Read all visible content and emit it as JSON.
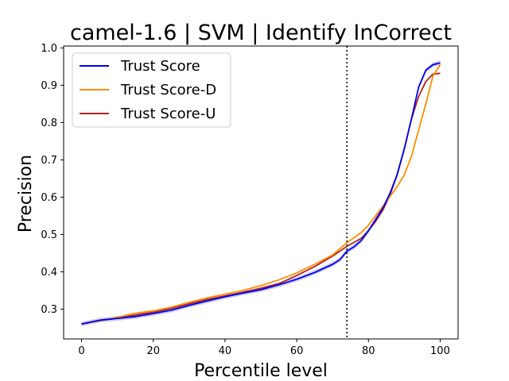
{
  "chart_data": {
    "type": "line",
    "title": "camel-1.6 | SVM | Identify InCorrect",
    "xlabel": "Percentile level",
    "ylabel": "Precision",
    "xlim": [
      -5,
      105
    ],
    "ylim": [
      0.22,
      1.005
    ],
    "xticks": [
      "0",
      "20",
      "40",
      "60",
      "80",
      "100"
    ],
    "yticks": [
      "0.3",
      "0.4",
      "0.5",
      "0.6",
      "0.7",
      "0.8",
      "0.9",
      "1.0"
    ],
    "grid": false,
    "legend_position": "top-left",
    "vline": {
      "x": 74,
      "style": "dotted",
      "color": "#000000"
    },
    "series": [
      {
        "name": "Trust Score",
        "color": "#0000ee",
        "band_color": "#b8b8f5",
        "x": [
          0,
          5,
          10,
          15,
          20,
          25,
          30,
          35,
          40,
          45,
          50,
          55,
          60,
          65,
          70,
          72,
          74,
          76,
          78,
          80,
          82,
          84,
          86,
          88,
          90,
          92,
          94,
          96,
          98,
          100
        ],
        "y": [
          0.26,
          0.27,
          0.275,
          0.28,
          0.288,
          0.297,
          0.31,
          0.322,
          0.333,
          0.343,
          0.352,
          0.365,
          0.38,
          0.398,
          0.42,
          0.432,
          0.455,
          0.467,
          0.484,
          0.51,
          0.54,
          0.57,
          0.61,
          0.66,
          0.73,
          0.81,
          0.895,
          0.94,
          0.955,
          0.96
        ]
      },
      {
        "name": "Trust Score-D",
        "color": "#ff8c00",
        "x": [
          0,
          5,
          10,
          15,
          20,
          25,
          30,
          35,
          40,
          45,
          50,
          55,
          60,
          65,
          70,
          74,
          78,
          80,
          84,
          88,
          90,
          92,
          94,
          96,
          98,
          100
        ],
        "y": [
          0.26,
          0.268,
          0.278,
          0.289,
          0.295,
          0.305,
          0.318,
          0.33,
          0.34,
          0.35,
          0.363,
          0.378,
          0.397,
          0.42,
          0.445,
          0.478,
          0.505,
          0.525,
          0.575,
          0.628,
          0.66,
          0.71,
          0.78,
          0.85,
          0.925,
          0.955
        ]
      },
      {
        "name": "Trust Score-U",
        "color": "#b22222",
        "x": [
          0,
          5,
          10,
          15,
          20,
          25,
          30,
          35,
          40,
          45,
          50,
          55,
          60,
          65,
          70,
          74,
          78,
          80,
          82,
          84,
          86,
          88,
          90,
          92,
          94,
          96,
          98,
          100
        ],
        "y": [
          0.26,
          0.27,
          0.276,
          0.284,
          0.292,
          0.302,
          0.314,
          0.326,
          0.335,
          0.345,
          0.356,
          0.368,
          0.39,
          0.414,
          0.442,
          0.468,
          0.49,
          0.51,
          0.535,
          0.565,
          0.605,
          0.66,
          0.73,
          0.81,
          0.87,
          0.91,
          0.93,
          0.932
        ]
      }
    ]
  }
}
